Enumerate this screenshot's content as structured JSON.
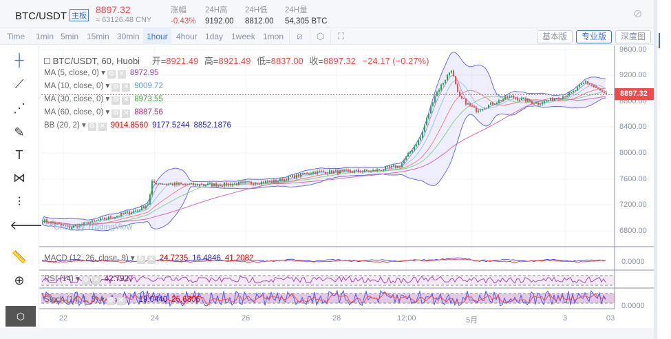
{
  "header": {
    "symbol": "BTC/USDT",
    "board_tag": "主板",
    "last_price": "8897.32",
    "cny_price": "≈ 63126.48 CNY",
    "stats": [
      {
        "label": "涨幅",
        "value": "-0.43%"
      },
      {
        "label": "24H高",
        "value": "9192.00"
      },
      {
        "label": "24H低",
        "value": "8812.00"
      },
      {
        "label": "24H量",
        "value": "54,305 BTC"
      }
    ]
  },
  "toolbar": {
    "intervals": [
      "Time",
      "1min",
      "5min",
      "15min",
      "30min",
      "1hour",
      "4hour",
      "1day",
      "1week",
      "1mon"
    ],
    "selected": "1hour",
    "views": [
      "基本版",
      "专业版",
      "深度图"
    ],
    "active_view": "专业版"
  },
  "legend": {
    "title": "BTC/USDT, 60, Huobi",
    "open_label": "开=",
    "open": "8921.49",
    "high_label": "高=",
    "high": "8921.49",
    "low_label": "低=",
    "low": "8837.00",
    "close_label": "收=",
    "close": "8897.32",
    "change": "−24.17 (−0.27%)",
    "indicators": [
      {
        "name": "MA (5, close, 0)",
        "values": [
          "8972.95"
        ],
        "color": "#8e44ad"
      },
      {
        "name": "MA (10, close, 0)",
        "values": [
          "9009.72"
        ],
        "color": "#5b9bd5"
      },
      {
        "name": "MA (30, close, 0)",
        "values": [
          "8973.55"
        ],
        "color": "#3aa63a"
      },
      {
        "name": "MA (60, close, 0)",
        "values": [
          "8887.56"
        ],
        "color": "#b0287a"
      },
      {
        "name": "BB (20, 2)",
        "values": [
          "9014.8560",
          "9177.5244",
          "8852.1876"
        ]
      }
    ]
  },
  "macd": {
    "name": "MACD (12, 26, close, 9)",
    "values": [
      "24.7235",
      "16.4846",
      "41.2082"
    ]
  },
  "rsi": {
    "name": "RSI (14)",
    "value": "42.7927"
  },
  "stoch": {
    "name": "Stoch (14, 1, 3)",
    "values": [
      "19.0440",
      "25.6306"
    ]
  },
  "price_axis": [
    "9600.00",
    "9200.00",
    "8800.00",
    "8400.00",
    "8000.00",
    "7600.00",
    "7200.00",
    "6800.00"
  ],
  "current_price_label": "8897.32",
  "macd_axis": "0.0000",
  "stoch_axis": "0.0000",
  "time_axis": [
    "22",
    "24",
    "26",
    "28",
    "12:00",
    "5月",
    "3",
    "03"
  ],
  "watermark": "Chart by TradingView",
  "colors": {
    "up": "#26a65b",
    "down": "#f04a4a",
    "accent": "#3b6fd8",
    "bb": "#5a5ae6"
  }
}
